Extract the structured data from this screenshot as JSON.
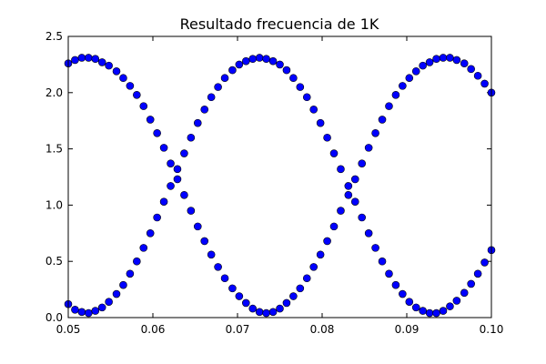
{
  "chart_data": {
    "type": "scatter",
    "title": "Resultado frecuencia de 1K",
    "xlabel": "",
    "ylabel": "",
    "xlim": [
      0.05,
      0.1
    ],
    "ylim": [
      0.0,
      2.5
    ],
    "x_ticks": [
      "0.05",
      "0.06",
      "0.07",
      "0.08",
      "0.09",
      "0.10"
    ],
    "y_ticks": [
      "0.0",
      "0.5",
      "1.0",
      "1.5",
      "2.0",
      "2.5"
    ],
    "grid": false,
    "marker_color": "#0000ff",
    "series": [
      {
        "x": [
          0.05,
          0.0508,
          0.0516,
          0.0524,
          0.0532,
          0.054,
          0.0548,
          0.0557,
          0.0565,
          0.0573,
          0.0581,
          0.0589,
          0.0597,
          0.0605,
          0.0613,
          0.0621,
          0.0629,
          0.0637,
          0.0645,
          0.0653,
          0.0661,
          0.0669,
          0.0677,
          0.0685,
          0.0694,
          0.0702,
          0.071,
          0.0718,
          0.0726,
          0.0734,
          0.0742,
          0.075,
          0.0758,
          0.0766,
          0.0774,
          0.0782,
          0.079,
          0.0798,
          0.0806,
          0.0814,
          0.0822,
          0.0831,
          0.0839,
          0.0847,
          0.0855,
          0.0863,
          0.0871,
          0.0879,
          0.0887,
          0.0895,
          0.0903,
          0.0911,
          0.0919,
          0.0927,
          0.0935,
          0.0943,
          0.0951,
          0.0959,
          0.0968,
          0.0976,
          0.0984,
          0.0992,
          0.1
        ],
        "y": [
          2.26,
          2.29,
          2.31,
          2.31,
          2.3,
          2.27,
          2.24,
          2.19,
          2.13,
          2.06,
          1.98,
          1.88,
          1.76,
          1.64,
          1.51,
          1.37,
          1.23,
          1.09,
          0.95,
          0.81,
          0.68,
          0.56,
          0.45,
          0.35,
          0.26,
          0.19,
          0.13,
          0.08,
          0.05,
          0.04,
          0.05,
          0.08,
          0.13,
          0.19,
          0.26,
          0.35,
          0.45,
          0.56,
          0.68,
          0.81,
          0.95,
          1.09,
          1.23,
          1.37,
          1.51,
          1.64,
          1.76,
          1.88,
          1.98,
          2.06,
          2.13,
          2.19,
          2.24,
          2.27,
          2.3,
          2.31,
          2.31,
          2.29,
          2.26,
          2.21,
          2.15,
          2.08,
          2.0
        ]
      },
      {
        "x": [
          0.05,
          0.0508,
          0.0516,
          0.0524,
          0.0532,
          0.054,
          0.0548,
          0.0557,
          0.0565,
          0.0573,
          0.0581,
          0.0589,
          0.0597,
          0.0605,
          0.0613,
          0.0621,
          0.0629,
          0.0637,
          0.0645,
          0.0653,
          0.0661,
          0.0669,
          0.0677,
          0.0685,
          0.0694,
          0.0702,
          0.071,
          0.0718,
          0.0726,
          0.0734,
          0.0742,
          0.075,
          0.0758,
          0.0766,
          0.0774,
          0.0782,
          0.079,
          0.0798,
          0.0806,
          0.0814,
          0.0822,
          0.0831,
          0.0839,
          0.0847,
          0.0855,
          0.0863,
          0.0871,
          0.0879,
          0.0887,
          0.0895,
          0.0903,
          0.0911,
          0.0919,
          0.0927,
          0.0935,
          0.0943,
          0.0951,
          0.0959,
          0.0968,
          0.0976,
          0.0984,
          0.0992,
          0.1
        ],
        "y": [
          0.12,
          0.07,
          0.05,
          0.04,
          0.06,
          0.09,
          0.14,
          0.21,
          0.29,
          0.39,
          0.5,
          0.62,
          0.75,
          0.89,
          1.03,
          1.17,
          1.32,
          1.46,
          1.6,
          1.73,
          1.85,
          1.96,
          2.05,
          2.13,
          2.2,
          2.25,
          2.28,
          2.3,
          2.31,
          2.3,
          2.28,
          2.25,
          2.2,
          2.13,
          2.05,
          1.96,
          1.85,
          1.73,
          1.6,
          1.46,
          1.32,
          1.17,
          1.03,
          0.89,
          0.75,
          0.62,
          0.5,
          0.39,
          0.29,
          0.21,
          0.14,
          0.09,
          0.06,
          0.04,
          0.04,
          0.06,
          0.1,
          0.15,
          0.22,
          0.3,
          0.39,
          0.49,
          0.6
        ]
      }
    ]
  }
}
